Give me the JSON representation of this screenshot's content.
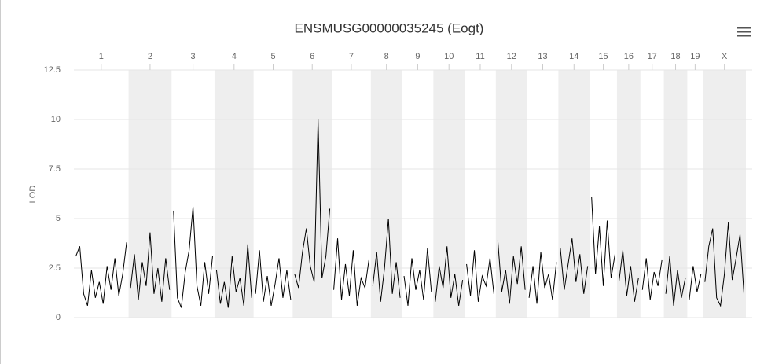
{
  "chart_data": {
    "type": "line",
    "title": "ENSMUSG00000035245 (Eogt)",
    "y_label": "LOD",
    "ylim": [
      0,
      12.5
    ],
    "yticks": [
      0,
      2.5,
      5,
      7.5,
      10,
      12.5
    ],
    "grid": true,
    "color": "#000000",
    "band_color": "#eeeeee",
    "chromosomes": [
      {
        "name": "1",
        "values": [
          3.1,
          3.6,
          1.2,
          0.6,
          2.4,
          1.0,
          1.8,
          0.7,
          2.6,
          1.4,
          3.0,
          1.1,
          2.2,
          3.8
        ]
      },
      {
        "name": "2",
        "values": [
          1.5,
          3.2,
          0.9,
          2.8,
          1.6,
          4.3,
          1.2,
          2.5,
          0.8,
          3.0,
          1.4
        ]
      },
      {
        "name": "3",
        "values": [
          5.4,
          1.0,
          0.5,
          2.3,
          3.4,
          5.6,
          1.6,
          0.6,
          2.8,
          1.2,
          3.1
        ]
      },
      {
        "name": "4",
        "values": [
          2.4,
          0.7,
          1.8,
          0.5,
          3.1,
          1.3,
          2.0,
          0.6,
          3.7,
          1.0
        ]
      },
      {
        "name": "5",
        "values": [
          1.2,
          3.4,
          0.8,
          2.1,
          0.6,
          1.7,
          3.0,
          1.0,
          2.4,
          0.9
        ]
      },
      {
        "name": "6",
        "values": [
          2.2,
          1.5,
          3.3,
          4.5,
          2.6,
          1.8,
          10.0,
          2.0,
          3.1,
          5.5
        ]
      },
      {
        "name": "7",
        "values": [
          1.4,
          4.0,
          0.9,
          2.7,
          1.1,
          3.4,
          0.6,
          2.0,
          1.5,
          2.9
        ]
      },
      {
        "name": "8",
        "values": [
          1.6,
          3.3,
          0.8,
          2.5,
          5.0,
          1.2,
          2.8,
          1.0
        ]
      },
      {
        "name": "9",
        "values": [
          2.1,
          0.6,
          3.0,
          1.4,
          2.4,
          0.9,
          3.5,
          1.3
        ]
      },
      {
        "name": "10",
        "values": [
          0.8,
          2.6,
          1.5,
          3.6,
          1.0,
          2.2,
          0.6,
          1.9
        ]
      },
      {
        "name": "11",
        "values": [
          2.7,
          1.1,
          3.4,
          0.8,
          2.1,
          1.6,
          3.0,
          1.2
        ]
      },
      {
        "name": "12",
        "values": [
          3.9,
          1.3,
          2.4,
          0.7,
          3.1,
          1.7,
          3.6,
          1.4
        ]
      },
      {
        "name": "13",
        "values": [
          1.0,
          2.6,
          0.7,
          3.3,
          1.5,
          2.2,
          0.9,
          2.8
        ]
      },
      {
        "name": "14",
        "values": [
          3.5,
          1.4,
          2.7,
          4.0,
          1.8,
          3.2,
          1.2,
          2.6
        ]
      },
      {
        "name": "15",
        "values": [
          6.1,
          2.2,
          4.6,
          1.6,
          4.9,
          2.0,
          3.2
        ]
      },
      {
        "name": "16",
        "values": [
          1.8,
          3.4,
          1.1,
          2.6,
          0.8,
          2.0
        ]
      },
      {
        "name": "17",
        "values": [
          1.4,
          3.0,
          0.9,
          2.3,
          1.6,
          2.9
        ]
      },
      {
        "name": "18",
        "values": [
          1.2,
          3.1,
          0.6,
          2.4,
          1.0,
          2.0
        ]
      },
      {
        "name": "19",
        "values": [
          0.9,
          2.6,
          1.3,
          2.2
        ]
      },
      {
        "name": "X",
        "values": [
          1.8,
          3.6,
          4.5,
          1.0,
          0.6,
          2.2,
          4.8,
          1.9,
          3.0,
          4.2,
          1.2
        ]
      }
    ]
  }
}
